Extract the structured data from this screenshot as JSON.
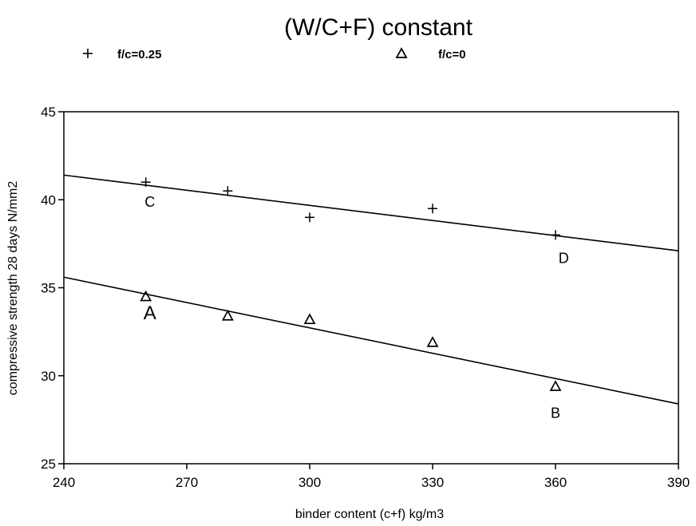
{
  "chart_data": {
    "type": "scatter",
    "title": "(W/C+F) constant",
    "xlabel": "binder content (c+f) kg/m3",
    "ylabel": "compressive strength 28 days N/mm2",
    "xlim": [
      240,
      390
    ],
    "ylim": [
      25,
      45
    ],
    "xticks": [
      "240",
      "270",
      "300",
      "330",
      "360",
      "390"
    ],
    "yticks": [
      "25",
      "30",
      "35",
      "40",
      "45"
    ],
    "grid": false,
    "legend_position": "top",
    "series": [
      {
        "name": "f/c=0.25",
        "marker": "+",
        "points": [
          [
            260,
            41.0
          ],
          [
            280,
            40.5
          ],
          [
            300,
            39.0
          ],
          [
            330,
            39.5
          ],
          [
            360,
            38.0
          ]
        ],
        "fit_line": [
          [
            240,
            41.4
          ],
          [
            390,
            37.1
          ]
        ]
      },
      {
        "name": "f/c=0",
        "marker": "triangle",
        "points": [
          [
            260,
            34.5
          ],
          [
            280,
            33.4
          ],
          [
            300,
            33.2
          ],
          [
            330,
            31.9
          ],
          [
            360,
            29.4
          ]
        ],
        "fit_line": [
          [
            240,
            35.6
          ],
          [
            390,
            28.4
          ]
        ]
      }
    ],
    "annotations": [
      {
        "text": "C",
        "x": 261,
        "y": 39.6,
        "size": "normal"
      },
      {
        "text": "D",
        "x": 362,
        "y": 36.4,
        "size": "normal"
      },
      {
        "text": "A",
        "x": 261,
        "y": 33.2,
        "size": "large"
      },
      {
        "text": "B",
        "x": 360,
        "y": 27.6,
        "size": "normal"
      }
    ]
  }
}
